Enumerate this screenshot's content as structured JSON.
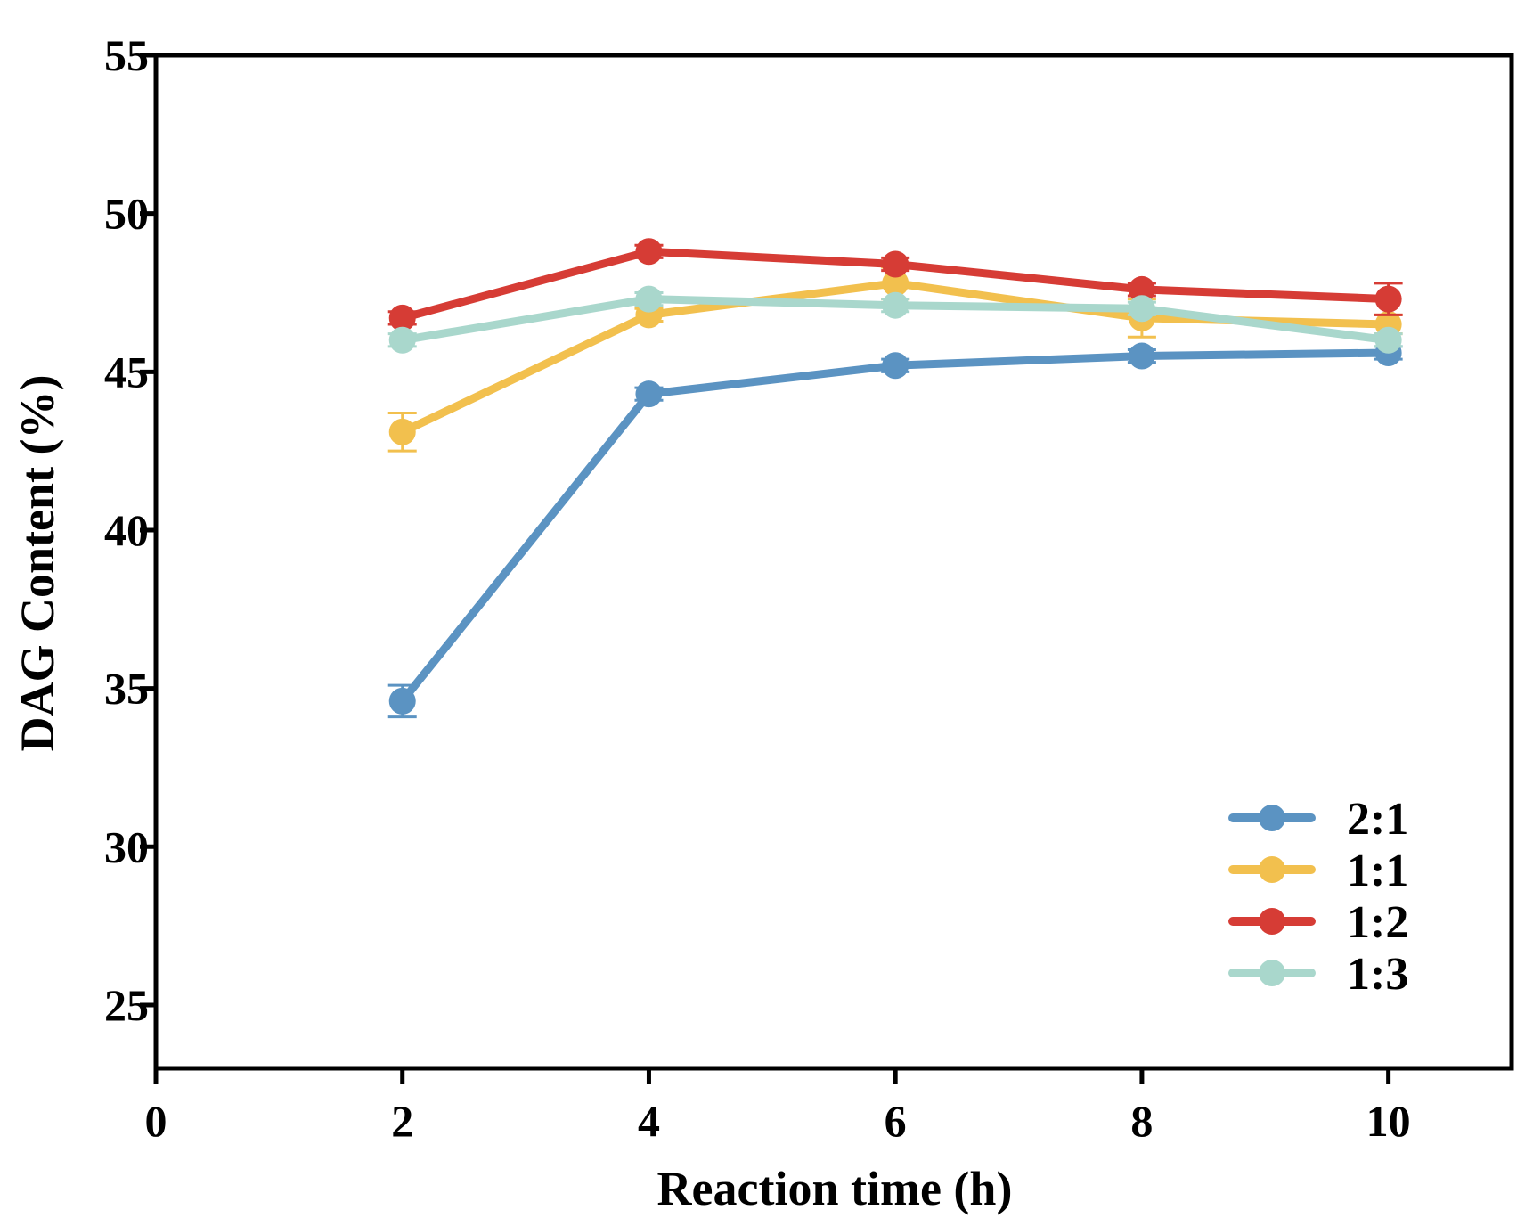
{
  "chart_data": {
    "type": "line",
    "xlabel": "Reaction time (h)",
    "ylabel": "DAG Content (%)",
    "xlim": [
      0,
      11
    ],
    "ylim": [
      23,
      55
    ],
    "x_ticks": [
      0,
      2,
      4,
      6,
      8,
      10
    ],
    "y_ticks": [
      25,
      30,
      35,
      40,
      45,
      50,
      55
    ],
    "x": [
      2,
      4,
      6,
      8,
      10
    ],
    "grid": false,
    "legend_position": "bottom-right",
    "series": [
      {
        "name": "2:1",
        "color": "#5b93c2",
        "values": [
          34.6,
          44.3,
          45.2,
          45.5,
          45.6
        ],
        "errors": [
          0.5,
          0.2,
          0.2,
          0.2,
          0.2
        ]
      },
      {
        "name": "1:1",
        "color": "#f2c04e",
        "values": [
          43.1,
          46.8,
          47.8,
          46.7,
          46.5
        ],
        "errors": [
          0.6,
          0.2,
          0.5,
          0.6,
          0.3
        ]
      },
      {
        "name": "1:2",
        "color": "#d63c35",
        "values": [
          46.7,
          48.8,
          48.4,
          47.6,
          47.3
        ],
        "errors": [
          0.2,
          0.2,
          0.2,
          0.2,
          0.5
        ]
      },
      {
        "name": "1:3",
        "color": "#a9d7cc",
        "values": [
          46.0,
          47.3,
          47.1,
          47.0,
          46.0
        ],
        "errors": [
          0.2,
          0.2,
          0.2,
          0.2,
          0.2
        ]
      }
    ]
  }
}
